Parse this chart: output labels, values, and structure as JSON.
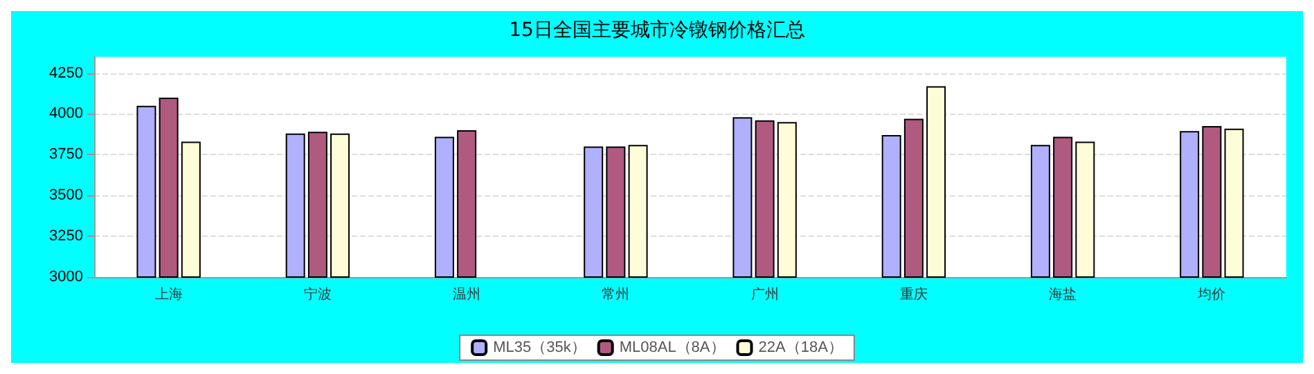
{
  "chart_data": {
    "type": "bar",
    "title": "15日全国主要城市冷镦钢价格汇总",
    "categories": [
      "上海",
      "宁波",
      "温州",
      "常州",
      "广州",
      "重庆",
      "海盐",
      "均价"
    ],
    "series": [
      {
        "name": "ML35（35k）",
        "color": "#b0b0ff",
        "values": [
          4050,
          3880,
          3860,
          3800,
          3980,
          3870,
          3810,
          3895
        ]
      },
      {
        "name": "ML08AL（8A）",
        "color": "#b05a80",
        "values": [
          4100,
          3890,
          3900,
          3800,
          3960,
          3970,
          3860,
          3925
        ]
      },
      {
        "name": "22A（18A）",
        "color": "#fffdd8",
        "values": [
          3830,
          3880,
          null,
          3810,
          3950,
          4170,
          3830,
          3910
        ]
      }
    ],
    "ylim": [
      3000,
      4350
    ],
    "yticks": [
      3000,
      3250,
      3500,
      3750,
      4000,
      4250
    ],
    "grid": "y",
    "legend": "bottom"
  }
}
